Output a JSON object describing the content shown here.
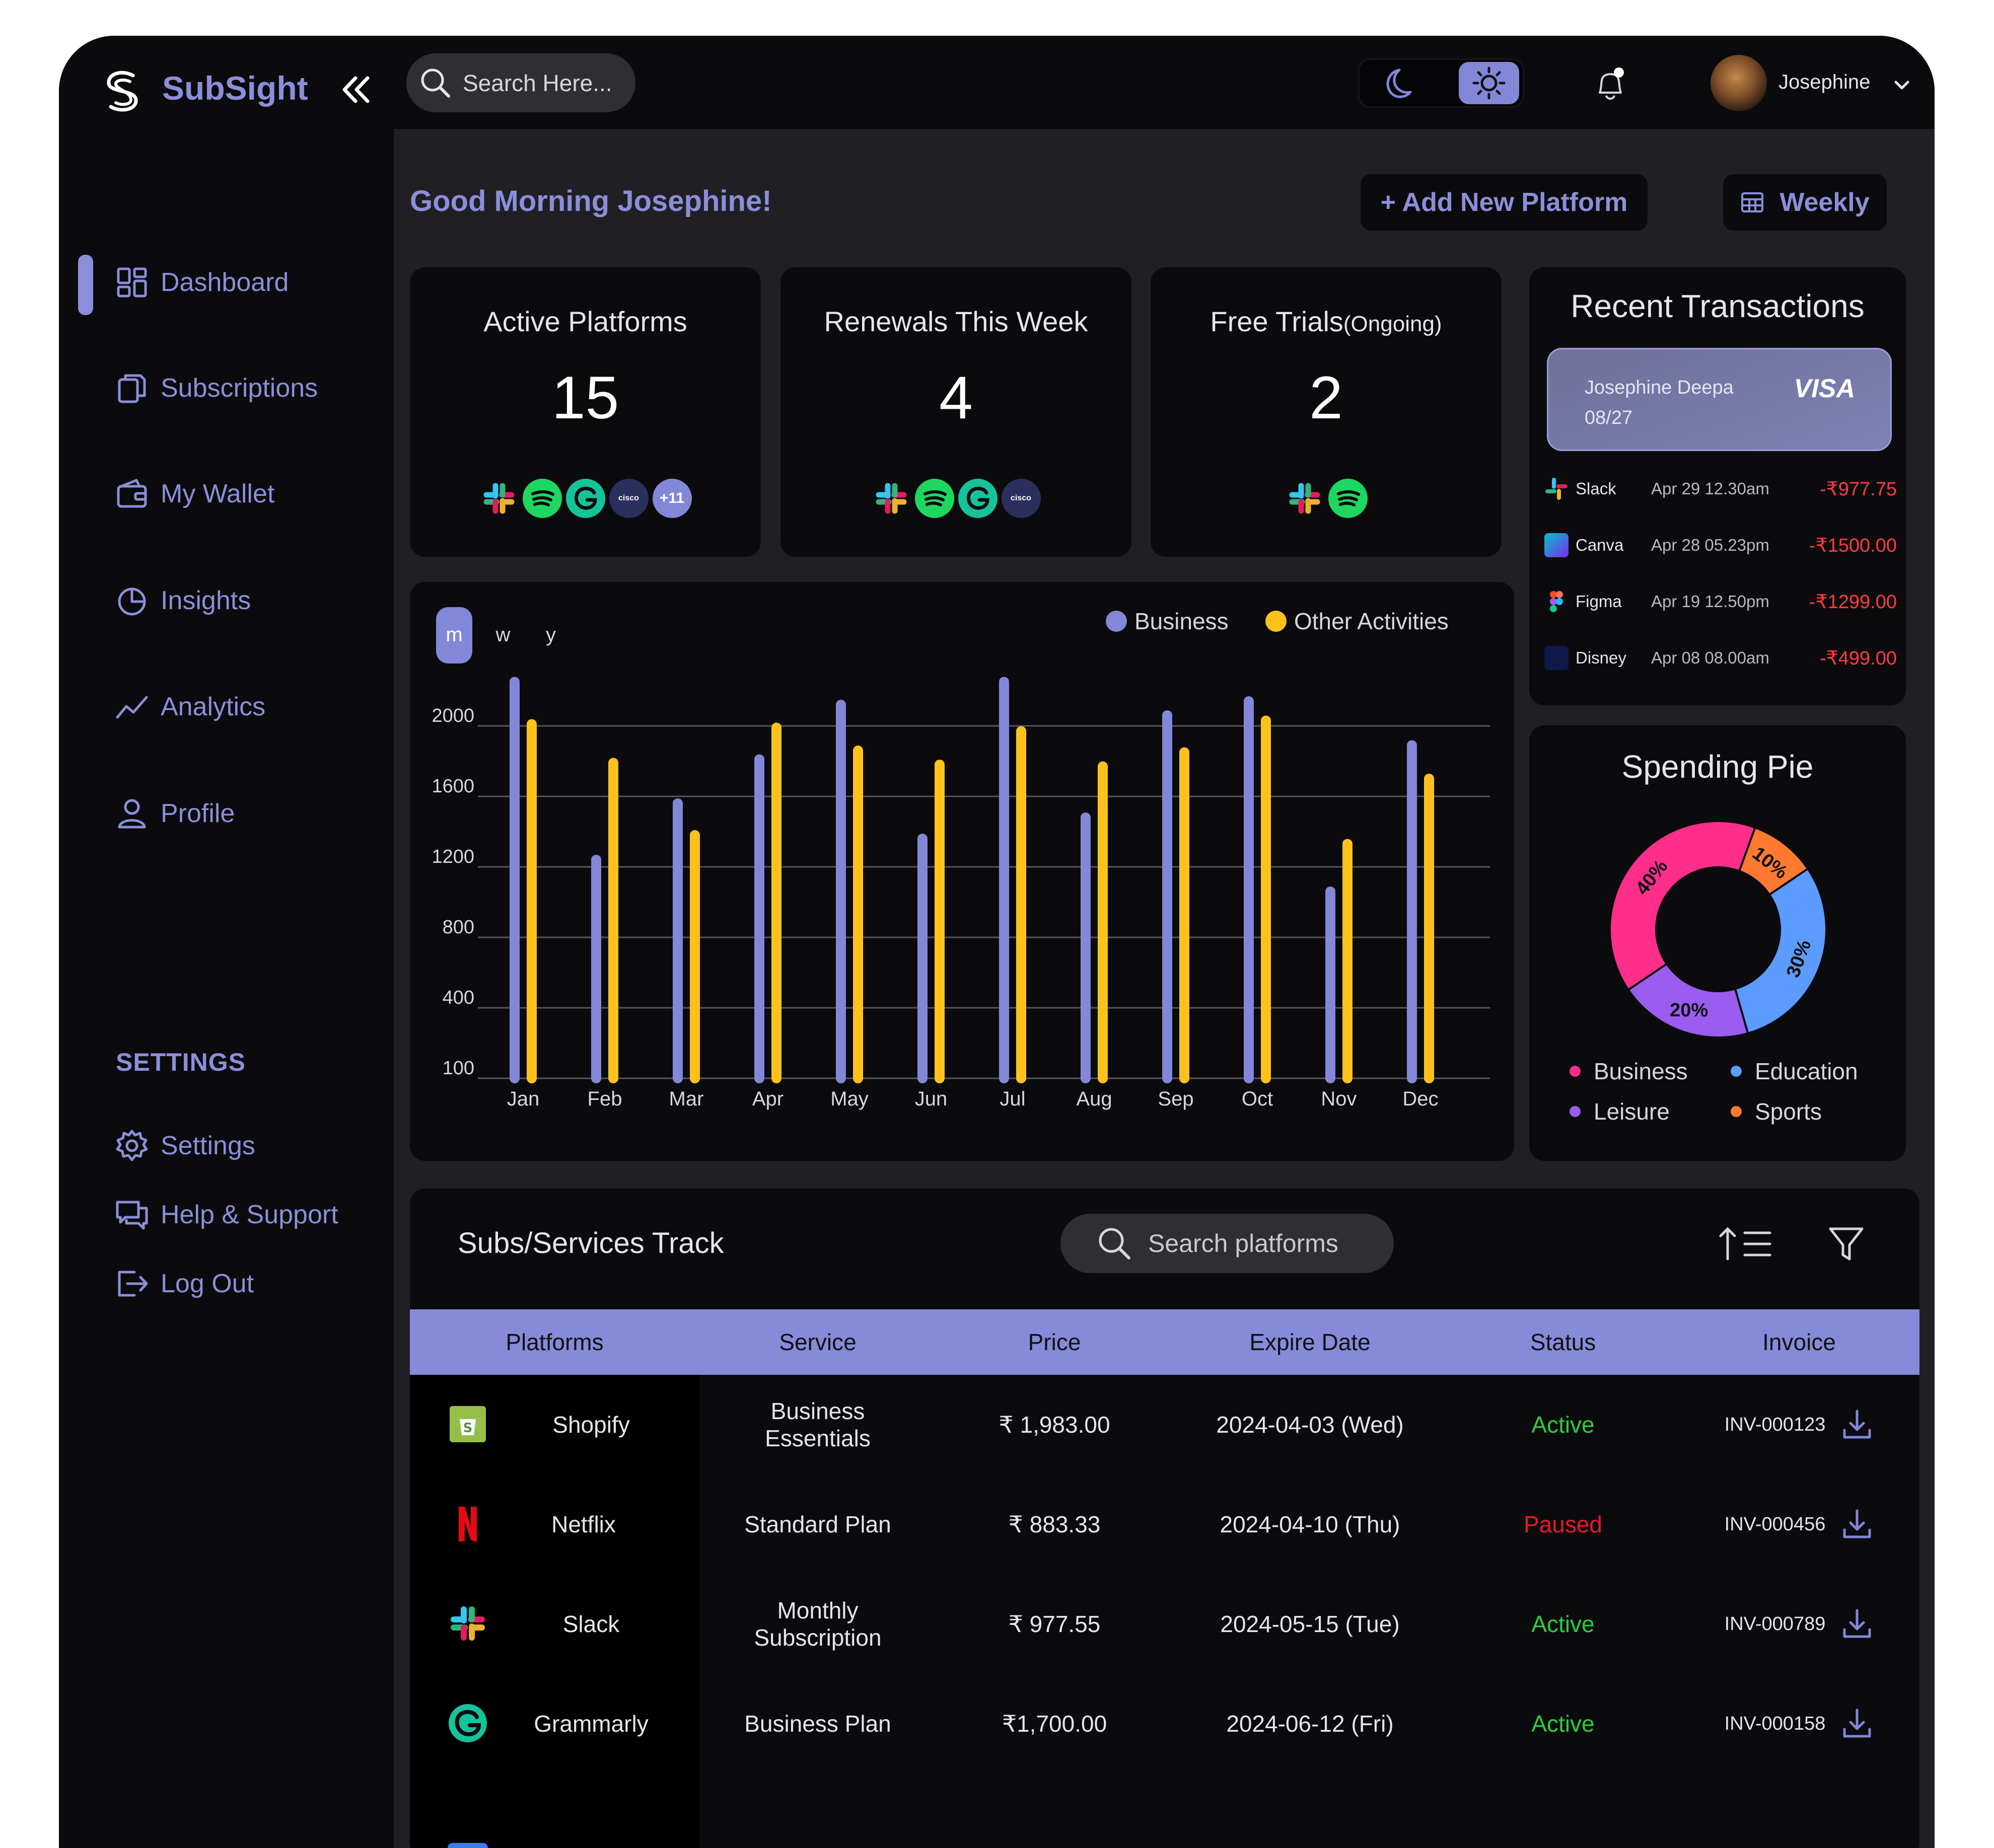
{
  "app": {
    "brand": "SubSight"
  },
  "search": {
    "placeholder": "Search Here..."
  },
  "user": {
    "name": "Josephine"
  },
  "sidebar": {
    "items": [
      {
        "label": "Dashboard",
        "icon": "dashboard-icon",
        "active": true
      },
      {
        "label": "Subscriptions",
        "icon": "subscriptions-icon"
      },
      {
        "label": "My Wallet",
        "icon": "wallet-icon"
      },
      {
        "label": "Insights",
        "icon": "insights-icon"
      },
      {
        "label": "Analytics",
        "icon": "analytics-icon"
      },
      {
        "label": "Profile",
        "icon": "profile-icon"
      }
    ],
    "settings_title": "SETTINGS",
    "settings_items": [
      {
        "label": "Settings",
        "icon": "gear-icon"
      },
      {
        "label": "Help & Support",
        "icon": "help-icon"
      },
      {
        "label": "Log Out",
        "icon": "logout-icon"
      }
    ]
  },
  "header": {
    "greeting": "Good Morning Josephine!",
    "add_label": "+ Add New Platform",
    "period_label": "Weekly"
  },
  "stats": [
    {
      "title": "Active Platforms",
      "value": "15",
      "icons": [
        "slack",
        "spotify",
        "grammarly",
        "cisco",
        "+11"
      ]
    },
    {
      "title": "Renewals This Week",
      "value": "4",
      "icons": [
        "slack",
        "spotify",
        "grammarly",
        "cisco"
      ]
    },
    {
      "title": "Free Trials",
      "title_suffix": "(Ongoing)",
      "value": "2",
      "icons": [
        "slack",
        "spotify"
      ]
    }
  ],
  "transactions": {
    "title": "Recent Transactions",
    "card": {
      "holder": "Josephine Deepa",
      "expiry": "08/27",
      "brand": "VISA"
    },
    "rows": [
      {
        "name": "Slack",
        "date": "Apr 29  12.30am",
        "amount": "-₹977.75",
        "icon": "slack"
      },
      {
        "name": "Canva",
        "date": "Apr 28  05.23pm",
        "amount": "-₹1500.00",
        "icon": "canva"
      },
      {
        "name": "Figma",
        "date": "Apr 19  12.50pm",
        "amount": "-₹1299.00",
        "icon": "figma"
      },
      {
        "name": "Disney",
        "date": "Apr 08  08.00am",
        "amount": "-₹499.00",
        "icon": "disney"
      }
    ]
  },
  "chart_data": {
    "type": "bar",
    "period_tabs": [
      "m",
      "w",
      "y"
    ],
    "active_tab": "m",
    "categories": [
      "Jan",
      "Feb",
      "Mar",
      "Apr",
      "May",
      "Jun",
      "Jul",
      "Aug",
      "Sep",
      "Oct",
      "Nov",
      "Dec"
    ],
    "y_ticks": [
      "2000",
      "1600",
      "1200",
      "800",
      "400",
      "100"
    ],
    "series": [
      {
        "name": "Business",
        "color": "#8287d8",
        "values": [
          2250,
          1240,
          1560,
          1810,
          2120,
          1360,
          2250,
          1480,
          2060,
          2140,
          1060,
          1890
        ]
      },
      {
        "name": "Other Activities",
        "color": "#ffc21c",
        "values": [
          2010,
          1790,
          1380,
          1990,
          1860,
          1780,
          1970,
          1770,
          1850,
          2030,
          1330,
          1700
        ]
      }
    ],
    "legend_position": "top-right",
    "grid": true
  },
  "pie": {
    "title": "Spending Pie",
    "slices": [
      {
        "name": "Sports",
        "label": "10%",
        "value": 10,
        "color": "#ff7a30"
      },
      {
        "name": "Education",
        "label": "30%",
        "value": 30,
        "color": "#5c9bff"
      },
      {
        "name": "Leisure",
        "label": "20%",
        "value": 20,
        "color": "#9b5cf0"
      },
      {
        "name": "Business",
        "label": "40%",
        "value": 40,
        "color": "#ff2e8a"
      }
    ],
    "legend": [
      {
        "name": "Business",
        "color": "#ff2e8a"
      },
      {
        "name": "Education",
        "color": "#5c9bff"
      },
      {
        "name": "Leisure",
        "color": "#9b5cf0"
      },
      {
        "name": "Sports",
        "color": "#ff7a30"
      }
    ]
  },
  "track": {
    "title": "Subs/Services Track",
    "search_placeholder": "Search platforms",
    "columns": [
      "Platforms",
      "Service",
      "Price",
      "Expire Date",
      "Status",
      "Invoice"
    ],
    "rows": [
      {
        "platform": "Shopify",
        "service": "Business Essentials",
        "price": "₹ 1,983.00",
        "expire": "2024-04-03 (Wed)",
        "status": "Active",
        "status_color": "#2ecc40",
        "invoice": "INV-000123",
        "icon": "shopify"
      },
      {
        "platform": "Netflix",
        "service": "Standard Plan",
        "price": "₹ 883.33",
        "expire": "2024-04-10 (Thu)",
        "status": "Paused",
        "status_color": "#e8192c",
        "invoice": "INV-000456",
        "icon": "netflix"
      },
      {
        "platform": "Slack",
        "service": "Monthly Subscription",
        "price": "₹ 977.55",
        "expire": "2024-05-15 (Tue)",
        "status": "Active",
        "status_color": "#2ecc40",
        "invoice": "INV-000789",
        "icon": "slack"
      },
      {
        "platform": "Grammarly",
        "service": "Business Plan",
        "price": "₹1,700.00",
        "expire": "2024-06-12 (Fri)",
        "status": "Active",
        "status_color": "#2ecc40",
        "invoice": "INV-000158",
        "icon": "grammarly"
      }
    ]
  }
}
